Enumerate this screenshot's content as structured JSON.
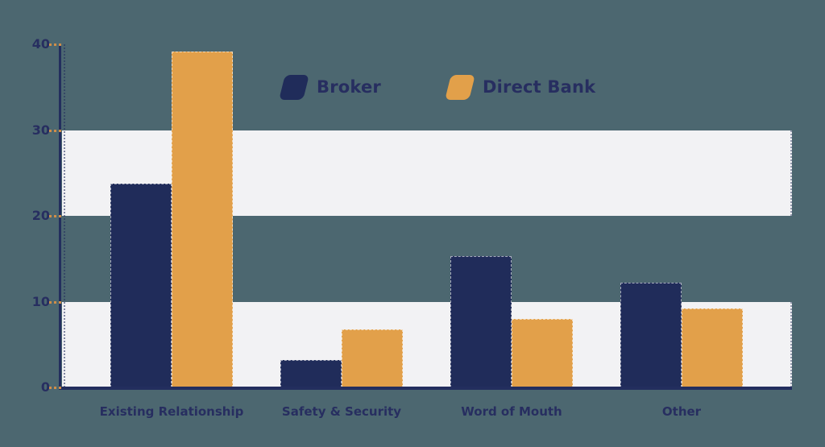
{
  "colors": {
    "background": "#4c6770",
    "band": "#f2f2f4",
    "axis": "#232e5e",
    "text": "#272e60",
    "tick_dash": "#cf8e49",
    "broker": "#202c5a",
    "direct_bank": "#e2a04a"
  },
  "chart_data": {
    "type": "bar",
    "title": "",
    "xlabel": "",
    "ylabel": "",
    "categories": [
      "Existing Relationship",
      "Safety & Security",
      "Word of Mouth",
      "Other"
    ],
    "series": [
      {
        "name": "Broker",
        "color": "#202c5a",
        "values": [
          23.8,
          3.2,
          15.3,
          12.2
        ]
      },
      {
        "name": "Direct Bank",
        "color": "#e2a04a",
        "values": [
          39.2,
          6.8,
          8.0,
          9.2
        ]
      }
    ],
    "ylim": [
      0,
      40
    ],
    "yticks": [
      0,
      10,
      20,
      30,
      40
    ],
    "grid": "banded-horizontal",
    "grid_bands": [
      [
        0,
        10
      ],
      [
        20,
        30
      ]
    ],
    "legend_position": "top-center"
  }
}
